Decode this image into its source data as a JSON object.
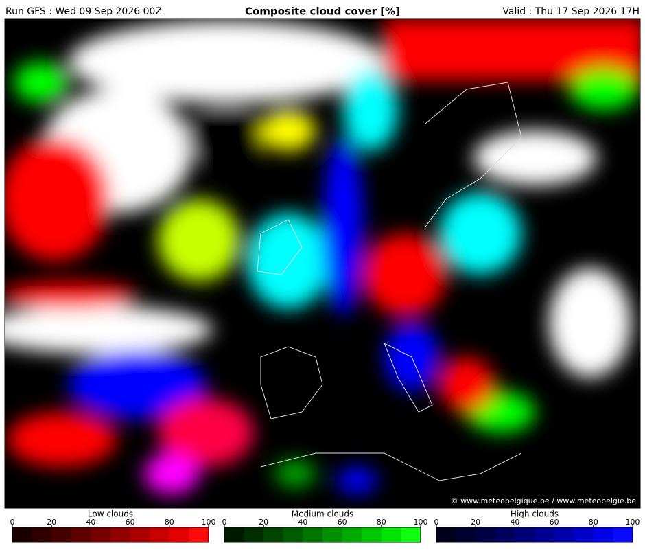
{
  "header": {
    "run": "Run GFS : Wed 09 Sep 2026 00Z",
    "title": "Composite cloud cover [%]",
    "valid": "Valid : Thu 17 Sep 2026 17H"
  },
  "map": {
    "credit": "© www.meteobelgique.be / www.meteobelgie.be"
  },
  "legends": [
    {
      "name": "Low clouds",
      "lim": [
        0,
        100
      ],
      "ticks": [
        0,
        20,
        40,
        60,
        80,
        100
      ],
      "colors": [
        "#1a0000",
        "#2e0000",
        "#440000",
        "#5c0000",
        "#760000",
        "#900000",
        "#aa0000",
        "#c80000",
        "#e40000",
        "#ff0a0a"
      ]
    },
    {
      "name": "Medium clouds",
      "lim": [
        0,
        100
      ],
      "ticks": [
        0,
        20,
        40,
        60,
        80,
        100
      ],
      "colors": [
        "#001a00",
        "#002e00",
        "#004400",
        "#005c00",
        "#007600",
        "#009000",
        "#00aa00",
        "#00c800",
        "#00e400",
        "#10ff10"
      ]
    },
    {
      "name": "High clouds",
      "lim": [
        0,
        100
      ],
      "ticks": [
        0,
        20,
        40,
        60,
        80,
        100
      ],
      "colors": [
        "#00001a",
        "#00002e",
        "#000044",
        "#00005c",
        "#000076",
        "#000090",
        "#0000aa",
        "#0000c8",
        "#0000e4",
        "#0a0aff"
      ]
    }
  ]
}
